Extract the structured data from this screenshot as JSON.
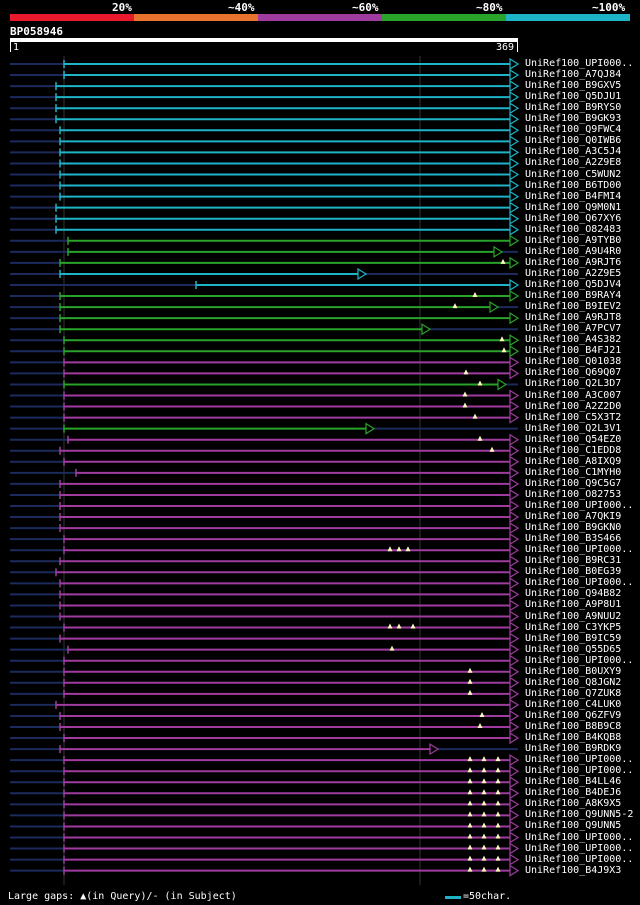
{
  "header": {
    "pct_labels": [
      "20%",
      "~40%",
      "~60%",
      "~80%",
      "~100%"
    ],
    "colors": [
      "#e8192c",
      "#e8732c",
      "#a03ca0",
      "#29a329",
      "#1eb4c8"
    ]
  },
  "query": {
    "name": "BP058946",
    "start": "1",
    "end": "369"
  },
  "footer": {
    "gaps_label": "Large gaps: ▲(in Query)/- (in Subject)",
    "scale_label": "=50char."
  },
  "hits": [
    {
      "name": "UniRef100_UPI000..",
      "color": "cyan",
      "start": 64
    },
    {
      "name": "UniRef100_A7QJ84",
      "color": "cyan",
      "start": 64
    },
    {
      "name": "UniRef100_B9GXV5",
      "color": "cyan",
      "start": 56
    },
    {
      "name": "UniRef100_Q5DJU1",
      "color": "cyan",
      "start": 56
    },
    {
      "name": "UniRef100_B9RYS0",
      "color": "cyan",
      "start": 56
    },
    {
      "name": "UniRef100_B9GK93",
      "color": "cyan",
      "start": 56
    },
    {
      "name": "UniRef100_Q9FWC4",
      "color": "cyan",
      "start": 60
    },
    {
      "name": "UniRef100_Q0IWB6",
      "color": "cyan",
      "start": 60
    },
    {
      "name": "UniRef100_A3C5J4",
      "color": "cyan",
      "start": 60
    },
    {
      "name": "UniRef100_A2Z9E8",
      "color": "cyan",
      "start": 60
    },
    {
      "name": "UniRef100_C5WUN2",
      "color": "cyan",
      "start": 60
    },
    {
      "name": "UniRef100_B6TD00",
      "color": "cyan",
      "start": 60
    },
    {
      "name": "UniRef100_B4FMI4",
      "color": "cyan",
      "start": 60
    },
    {
      "name": "UniRef100_Q9M0N1",
      "color": "cyan",
      "start": 56
    },
    {
      "name": "UniRef100_Q67XY6",
      "color": "cyan",
      "start": 56
    },
    {
      "name": "UniRef100_O82483",
      "color": "cyan",
      "start": 56
    },
    {
      "name": "UniRef100_A9TYB0",
      "color": "green",
      "start": 68
    },
    {
      "name": "UniRef100_A9U4R0",
      "color": "green",
      "start": 68,
      "end": 494
    },
    {
      "name": "UniRef100_A9RJT6",
      "color": "green",
      "start": 60,
      "tri": [
        503
      ]
    },
    {
      "name": "UniRef100_A2Z9E5",
      "color": "cyan",
      "start": 60,
      "end": 358
    },
    {
      "name": "UniRef100_Q5DJV4",
      "color": "cyan",
      "start": 196
    },
    {
      "name": "UniRef100_B9RAY4",
      "color": "green",
      "start": 60,
      "tri": [
        475
      ]
    },
    {
      "name": "UniRef100_B9IEV2",
      "color": "green",
      "start": 60,
      "end": 490,
      "tri": [
        455
      ]
    },
    {
      "name": "UniRef100_A9RJT8",
      "color": "green",
      "start": 60
    },
    {
      "name": "UniRef100_A7PCV7",
      "color": "green",
      "start": 60,
      "end": 422
    },
    {
      "name": "UniRef100_A4S382",
      "color": "green",
      "start": 64,
      "tri": [
        502
      ]
    },
    {
      "name": "UniRef100_B4FJ21",
      "color": "green",
      "start": 64,
      "tri": [
        504
      ]
    },
    {
      "name": "UniRef100_Q01038",
      "color": "magenta",
      "start": 64
    },
    {
      "name": "UniRef100_Q69Q07",
      "color": "magenta",
      "start": 64,
      "tri": [
        466
      ]
    },
    {
      "name": "UniRef100_Q2L3D7",
      "color": "green",
      "start": 64,
      "end": 498,
      "tri": [
        480
      ]
    },
    {
      "name": "UniRef100_A3C007",
      "color": "magenta",
      "start": 64,
      "tri": [
        465
      ]
    },
    {
      "name": "UniRef100_A2Z2D0",
      "color": "magenta",
      "start": 64,
      "tri": [
        465
      ]
    },
    {
      "name": "UniRef100_C5X3T2",
      "color": "magenta",
      "start": 64,
      "tri": [
        475
      ]
    },
    {
      "name": "UniRef100_Q2L3V1",
      "color": "green",
      "start": 64,
      "end": 366
    },
    {
      "name": "UniRef100_Q54EZ0",
      "color": "magenta",
      "start": 68,
      "tri": [
        480
      ]
    },
    {
      "name": "UniRef100_C1EDD8",
      "color": "magenta",
      "start": 60,
      "tri": [
        492
      ]
    },
    {
      "name": "UniRef100_A8IXQ9",
      "color": "magenta",
      "start": 64
    },
    {
      "name": "UniRef100_C1MYH0",
      "color": "magenta",
      "start": 76
    },
    {
      "name": "UniRef100_Q9C5G7",
      "color": "magenta",
      "start": 60
    },
    {
      "name": "UniRef100_O82753",
      "color": "magenta",
      "start": 60
    },
    {
      "name": "UniRef100_UPI000..",
      "color": "magenta",
      "start": 60
    },
    {
      "name": "UniRef100_A7QKI9",
      "color": "magenta",
      "start": 60
    },
    {
      "name": "UniRef100_B9GKN0",
      "color": "magenta",
      "start": 60
    },
    {
      "name": "UniRef100_B3S466",
      "color": "magenta",
      "start": 64
    },
    {
      "name": "UniRef100_UPI000..",
      "color": "magenta",
      "start": 64,
      "tri": [
        390,
        399,
        408
      ]
    },
    {
      "name": "UniRef100_B9RC31",
      "color": "magenta",
      "start": 60
    },
    {
      "name": "UniRef100_B0EG39",
      "color": "magenta",
      "start": 56
    },
    {
      "name": "UniRef100_UPI000..",
      "color": "magenta",
      "start": 60
    },
    {
      "name": "UniRef100_Q94B82",
      "color": "magenta",
      "start": 60
    },
    {
      "name": "UniRef100_A9P8U1",
      "color": "magenta",
      "start": 60
    },
    {
      "name": "UniRef100_A9NUU2",
      "color": "magenta",
      "start": 60
    },
    {
      "name": "UniRef100_C3YKP5",
      "color": "magenta",
      "start": 64,
      "tri": [
        390,
        399,
        413
      ]
    },
    {
      "name": "UniRef100_B9IC59",
      "color": "magenta",
      "start": 60
    },
    {
      "name": "UniRef100_Q55D65",
      "color": "magenta",
      "start": 68,
      "tri": [
        392
      ]
    },
    {
      "name": "UniRef100_UPI000..",
      "color": "magenta",
      "start": 64
    },
    {
      "name": "UniRef100_B0UXY9",
      "color": "magenta",
      "start": 64,
      "tri": [
        470
      ]
    },
    {
      "name": "UniRef100_Q8JGN2",
      "color": "magenta",
      "start": 64,
      "tri": [
        470
      ]
    },
    {
      "name": "UniRef100_Q7ZUK8",
      "color": "magenta",
      "start": 64,
      "tri": [
        470
      ]
    },
    {
      "name": "UniRef100_C4LUK0",
      "color": "magenta",
      "start": 56
    },
    {
      "name": "UniRef100_Q6ZFV9",
      "color": "magenta",
      "start": 60,
      "tri": [
        482
      ]
    },
    {
      "name": "UniRef100_B8B9C8",
      "color": "magenta",
      "start": 60,
      "tri": [
        480
      ]
    },
    {
      "name": "UniRef100_B4KQB8",
      "color": "magenta",
      "start": 64
    },
    {
      "name": "UniRef100_B9RDK9",
      "color": "magenta",
      "start": 60,
      "end": 430
    },
    {
      "name": "UniRef100_UPI000..",
      "color": "magenta",
      "start": 64,
      "tri": [
        470,
        484,
        498
      ]
    },
    {
      "name": "UniRef100_UPI000..",
      "color": "magenta",
      "start": 64,
      "tri": [
        470,
        484,
        498
      ]
    },
    {
      "name": "UniRef100_B4LL46",
      "color": "magenta",
      "start": 64,
      "tri": [
        470,
        484,
        498
      ]
    },
    {
      "name": "UniRef100_B4DEJ6",
      "color": "magenta",
      "start": 64,
      "tri": [
        470,
        484,
        498
      ]
    },
    {
      "name": "UniRef100_A8K9X5",
      "color": "magenta",
      "start": 64,
      "tri": [
        470,
        484,
        498
      ]
    },
    {
      "name": "UniRef100_Q9UNN5-2",
      "color": "magenta",
      "start": 64,
      "tri": [
        470,
        484,
        498
      ]
    },
    {
      "name": "UniRef100_Q9UNN5",
      "color": "magenta",
      "start": 64,
      "tri": [
        470,
        484,
        498
      ]
    },
    {
      "name": "UniRef100_UPI000..",
      "color": "magenta",
      "start": 64,
      "tri": [
        470,
        484,
        498
      ]
    },
    {
      "name": "UniRef100_UPI000..",
      "color": "magenta",
      "start": 64,
      "tri": [
        470,
        484,
        498
      ]
    },
    {
      "name": "UniRef100_UPI000..",
      "color": "magenta",
      "start": 64,
      "tri": [
        470,
        484,
        498
      ]
    },
    {
      "name": "UniRef100_B4J9X3",
      "color": "magenta",
      "start": 64,
      "tri": [
        470,
        484,
        498
      ]
    }
  ]
}
